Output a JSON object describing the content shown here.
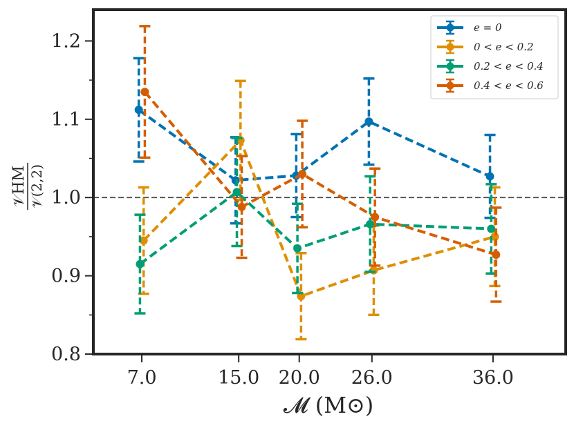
{
  "chart_data": {
    "type": "line",
    "title": "",
    "xlabel": "𝓜 (M⊙)",
    "ylabel_numerator": "𝒱HM",
    "ylabel_denominator": "𝒱(2,2)",
    "categories": [
      "7.0",
      "15.0",
      "20.0",
      "26.0",
      "36.0"
    ],
    "x": [
      7,
      15,
      20,
      26,
      36
    ],
    "xlim": [
      3,
      42
    ],
    "ylim": [
      0.8,
      1.24
    ],
    "yticks": [
      "0.8",
      "0.9",
      "1.0",
      "1.1",
      "1.2"
    ],
    "reference_line": 1.0,
    "legend_position": "top-right",
    "series": [
      {
        "name": "e = 0",
        "color": "#0173b2",
        "offset": -0.25,
        "values": [
          1.112,
          1.022,
          1.028,
          1.097,
          1.027
        ],
        "errors": [
          0.066,
          0.055,
          0.053,
          0.055,
          0.053
        ]
      },
      {
        "name": "0 < e < 0.2",
        "color": "#de8f05",
        "offset": 0.15,
        "values": [
          0.945,
          1.073,
          0.874,
          0.907,
          0.95
        ],
        "errors": [
          0.068,
          0.076,
          0.055,
          0.057,
          0.063
        ]
      },
      {
        "name": "0.2 < e < 0.4",
        "color": "#029e73",
        "offset": -0.15,
        "values": [
          0.915,
          1.007,
          0.935,
          0.966,
          0.96
        ],
        "errors": [
          0.063,
          0.069,
          0.057,
          0.061,
          0.057
        ]
      },
      {
        "name": "0.4 < e < 0.6",
        "color": "#d55e00",
        "offset": 0.25,
        "values": [
          1.135,
          0.988,
          1.03,
          0.975,
          0.927
        ],
        "errors": [
          0.084,
          0.065,
          0.068,
          0.062,
          0.06
        ]
      }
    ]
  }
}
